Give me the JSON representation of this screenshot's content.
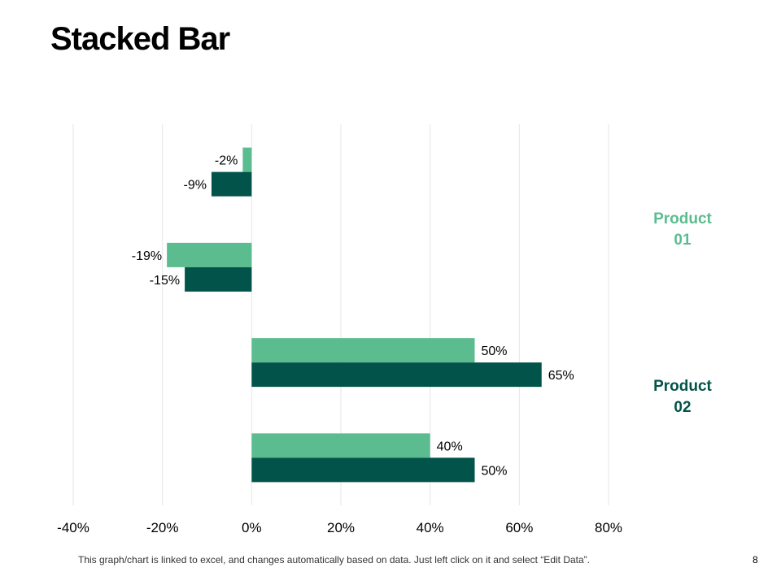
{
  "title": "Stacked Bar",
  "footer": {
    "note": "This graph/chart is linked to excel, and changes automatically based on data. Just left click on it and select “Edit Data”.",
    "page_number": "8"
  },
  "colors": {
    "product01": "#5bbd8f",
    "product02": "#02534a",
    "grid": "#e6e6e6"
  },
  "chart_data": {
    "type": "bar",
    "orientation": "horizontal",
    "title": "Stacked Bar",
    "xlabel": "",
    "ylabel": "",
    "categories": [
      "",
      "",
      "",
      ""
    ],
    "xlim": [
      -40,
      80
    ],
    "x_ticks": [
      -40,
      -20,
      0,
      20,
      40,
      60,
      80
    ],
    "x_tick_labels": [
      "-40%",
      "-20%",
      "0%",
      "20%",
      "40%",
      "60%",
      "80%"
    ],
    "value_suffix": "%",
    "grid": true,
    "legend_position": "right",
    "series": [
      {
        "name": "Product 01",
        "values": [
          -2,
          -19,
          50,
          40
        ]
      },
      {
        "name": "Product 02",
        "values": [
          -9,
          -15,
          65,
          50
        ]
      }
    ]
  },
  "legend": [
    {
      "line1": "Product",
      "line2": "01"
    },
    {
      "line1": "Product",
      "line2": "02"
    }
  ]
}
